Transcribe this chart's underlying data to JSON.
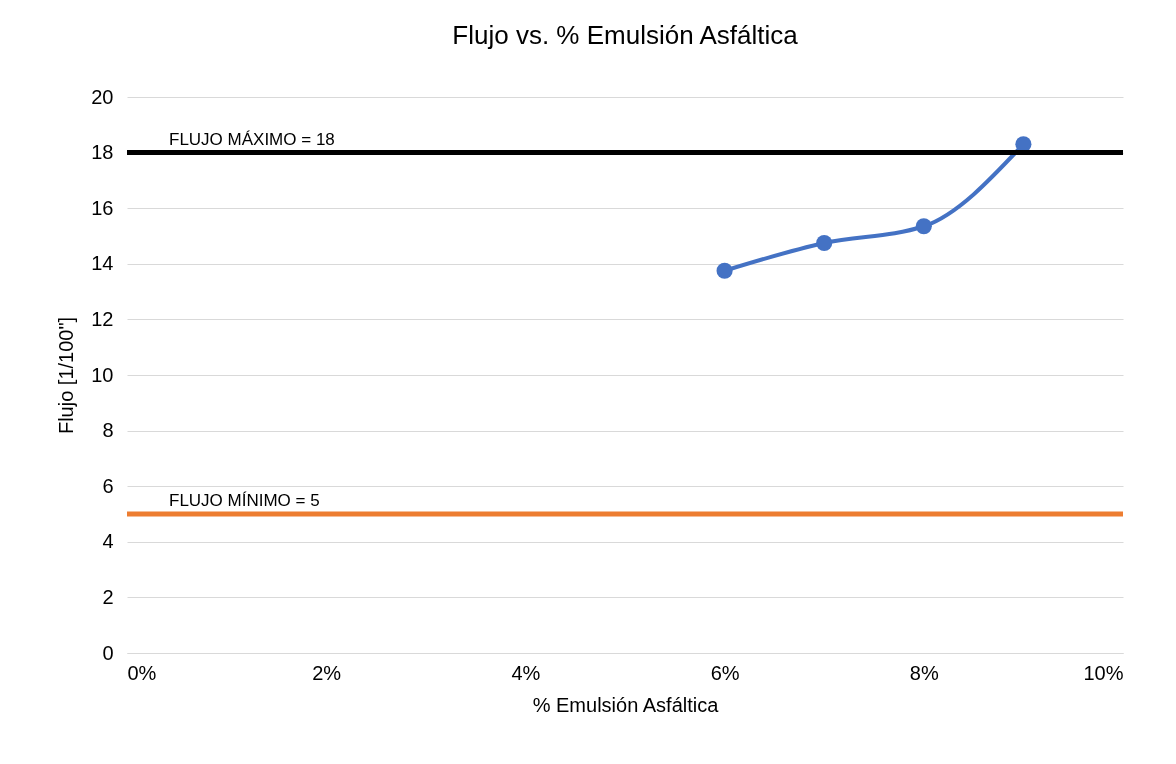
{
  "chart_data": {
    "type": "line",
    "title": "Flujo vs. % Emulsión Asfáltica",
    "xlabel": "% Emulsión Asfáltica",
    "ylabel": "Flujo [1/100\"]",
    "x": [
      6,
      7,
      8,
      9
    ],
    "series": [
      {
        "color": "#4472c4",
        "values": [
          13.75,
          14.75,
          15.35,
          18.3
        ]
      }
    ],
    "xlim": [
      0,
      10
    ],
    "xticks": [
      {
        "value": 0,
        "label": "0%"
      },
      {
        "value": 2,
        "label": "2%"
      },
      {
        "value": 4,
        "label": "4%"
      },
      {
        "value": 6,
        "label": "6%"
      },
      {
        "value": 8,
        "label": "8%"
      },
      {
        "value": 10,
        "label": "10%"
      }
    ],
    "ylim": [
      0,
      20
    ],
    "yticks": [
      0,
      2,
      4,
      6,
      8,
      10,
      12,
      14,
      16,
      18,
      20
    ],
    "ref_lines": [
      {
        "axis": "y",
        "value": 18,
        "label": "FLUJO MÁXIMO = 18",
        "color": "#000000"
      },
      {
        "axis": "y",
        "value": 5,
        "label": "FLUJO MÍNIMO = 5",
        "color": "#ed7d31"
      }
    ],
    "grid": "y",
    "marker": "circle",
    "line_style": "solid"
  }
}
